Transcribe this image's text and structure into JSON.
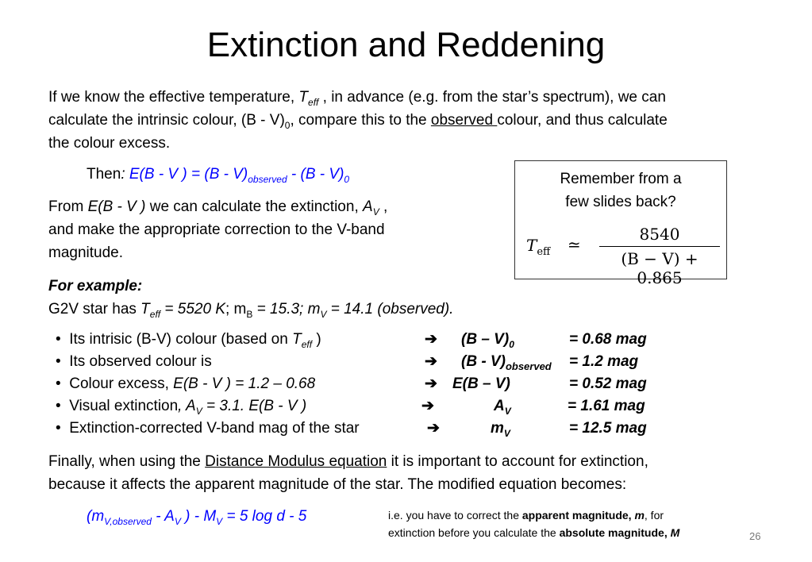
{
  "title": "Extinction and Reddening",
  "intro": {
    "t1": "If we know the effective temperature, ",
    "teff": "T",
    "teff_sub": "eff",
    "t2": " , in advance (e.g. from the star’s spectrum), we can",
    "t3": "calculate the intrinsic colour, (B - V)",
    "sub0": "0",
    "t4": ", compare this to the ",
    "observed": "observed ",
    "t5": "colour,  and thus calculate",
    "t6": "the colour excess."
  },
  "then": {
    "label": "Then",
    "colon": ":",
    "eq_a": "E(B - V ) = (B - V)",
    "eq_sub": "observed",
    "eq_b": " - (B - V)",
    "eq_sub0": "0"
  },
  "from": {
    "t1": "From ",
    "ebv": "E(B - V )",
    "t2": " we can calculate the extinction, ",
    "av": "A",
    "av_sub": "V",
    "t3": " ,",
    "t4": "and make the appropriate correction to the V-band",
    "t5": "magnitude."
  },
  "box": {
    "line1": "Remember from a",
    "line2": "few slides back?",
    "lhs": "T",
    "lhs_sub": "eff",
    "approx": "≃",
    "numerator": "8540",
    "denominator": "(B − V) + 0.865"
  },
  "example": {
    "heading": "For example:",
    "t1": "G2V star has ",
    "teff": "T",
    "teff_sub": "eff",
    "t2": " = 5520 K",
    "t3": ";  m",
    "mb_sub": "B",
    "t4": " = 15.3;  m",
    "mv_sub": "V",
    "t5": " = 14.1 (observed)."
  },
  "bullets": [
    {
      "pre": "Its intrisic (B-V) colour (based on ",
      "it": "T",
      "sub": "eff",
      "post": " )",
      "arrow": "➔",
      "q": "(B – V)",
      "qsub": "0",
      "val": "=  0.68 mag"
    },
    {
      "pre": "Its observed colour is",
      "it": "",
      "sub": "",
      "post": "",
      "arrow": "➔",
      "q": "(B - V)",
      "qsub": "observed",
      "val": "= 1.2 mag"
    },
    {
      "pre": "Colour excess, ",
      "it": "E(B - V ) = 1.2 – 0.68",
      "sub": "",
      "post": "",
      "arrow": "➔",
      "q": "E(B – V)",
      "qsub": "",
      "val": "= 0.52 mag"
    },
    {
      "pre": "Visual extinction",
      "it": ", A",
      "sub": "V",
      "post": " = 3.1. E(B - V )",
      "arrow": "➔",
      "q": "A",
      "qsub": "V",
      "val": "= 1.61 mag"
    },
    {
      "pre": "Extinction-corrected V-band mag of the star",
      "it": "",
      "sub": "",
      "post": "",
      "arrow": "➔",
      "q": "m",
      "qsub": "V",
      "val": "= 12.5 mag"
    }
  ],
  "bullet_char": "•",
  "finally": {
    "t1": "Finally, when using the ",
    "link": "Distance Modulus equation",
    "t2": " it is important to account for extinction,",
    "t3": "because it affects the apparent magnitude of the star. The modified equation becomes:"
  },
  "final_eq": {
    "a": "(m",
    "a_sub": "V,observed",
    "b": " - A",
    "b_sub": "V",
    "c": " ) - M",
    "c_sub": "V",
    "d": " = 5 log d - 5"
  },
  "note": {
    "t1": "i.e. you have to correct the ",
    "b1": "apparent magnitude, ",
    "b1i": "m",
    "t2": ", for",
    "t3": "extinction before you calculate the ",
    "b2": "absolute magnitude, ",
    "b2i": "M"
  },
  "page_number": "26"
}
